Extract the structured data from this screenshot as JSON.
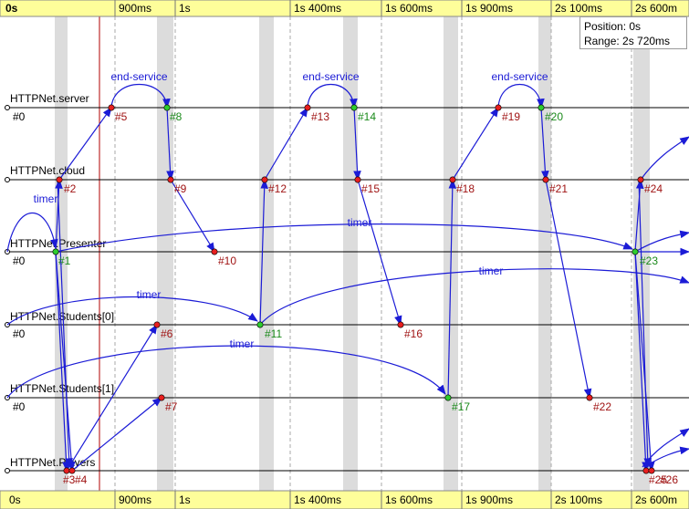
{
  "colors": {
    "ruler_bg": "#fefe9a",
    "edge": "#1b1bd6",
    "node_red": "#e81f1f",
    "node_green": "#2ecc2e",
    "label_red": "#a01414",
    "label_green": "#1a8a1a",
    "band": "#dcdcdc",
    "cursor": "#b00000"
  },
  "ruler": {
    "origin_label": "0s",
    "ticks": [
      "900ms",
      "1s",
      "1s 400ms",
      "1s 600ms",
      "1s 900ms",
      "2s 100ms",
      "2s 600m"
    ]
  },
  "info": {
    "position": "Position: 0s",
    "range": "Range: 2s 720ms"
  },
  "lanes": [
    {
      "name": "HTTPNet.server",
      "sub": "#0"
    },
    {
      "name": "HTTPNet.cloud",
      "sub": ""
    },
    {
      "name": "HTTPNet.Presenter",
      "sub": "#0"
    },
    {
      "name": "HTTPNet.Students[0]",
      "sub": "#0"
    },
    {
      "name": "HTTPNet.Students[1]",
      "sub": "#0"
    },
    {
      "name": "HTTPNet.Players",
      "sub": ""
    }
  ],
  "events": [
    {
      "id": "#1",
      "lane": 2,
      "color": "green"
    },
    {
      "id": "#2",
      "lane": 1,
      "color": "red"
    },
    {
      "id": "#3",
      "lane": 5,
      "color": "red"
    },
    {
      "id": "#4",
      "lane": 5,
      "color": "red"
    },
    {
      "id": "#5",
      "lane": 0,
      "color": "red"
    },
    {
      "id": "#6",
      "lane": 3,
      "color": "red"
    },
    {
      "id": "#7",
      "lane": 4,
      "color": "red"
    },
    {
      "id": "#8",
      "lane": 0,
      "color": "green"
    },
    {
      "id": "#9",
      "lane": 1,
      "color": "red"
    },
    {
      "id": "#10",
      "lane": 2,
      "color": "red"
    },
    {
      "id": "#11",
      "lane": 3,
      "color": "green"
    },
    {
      "id": "#12",
      "lane": 1,
      "color": "red"
    },
    {
      "id": "#13",
      "lane": 0,
      "color": "red"
    },
    {
      "id": "#14",
      "lane": 0,
      "color": "green"
    },
    {
      "id": "#15",
      "lane": 1,
      "color": "red"
    },
    {
      "id": "#16",
      "lane": 3,
      "color": "red"
    },
    {
      "id": "#17",
      "lane": 4,
      "color": "green"
    },
    {
      "id": "#18",
      "lane": 1,
      "color": "red"
    },
    {
      "id": "#19",
      "lane": 0,
      "color": "red"
    },
    {
      "id": "#20",
      "lane": 0,
      "color": "green"
    },
    {
      "id": "#21",
      "lane": 1,
      "color": "red"
    },
    {
      "id": "#22",
      "lane": 4,
      "color": "red"
    },
    {
      "id": "#23",
      "lane": 2,
      "color": "green"
    },
    {
      "id": "#24",
      "lane": 1,
      "color": "red"
    },
    {
      "id": "#25",
      "lane": 5,
      "color": "red"
    },
    {
      "id": "#26",
      "lane": 5,
      "color": "red"
    }
  ],
  "arc_labels": {
    "end_service": "end-service",
    "timer": "timer"
  }
}
